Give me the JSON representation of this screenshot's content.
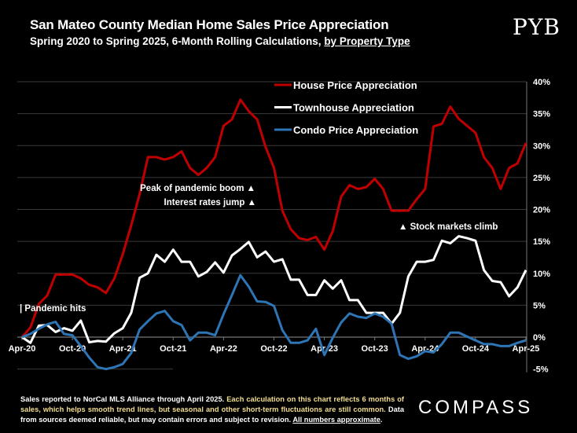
{
  "header": {
    "title": "San Mateo County Median Home Sales Price Appreciation",
    "subtitle_main": "Spring 2020 to Spring 2025, 6-Month Rolling Calculations, ",
    "subtitle_link": "by Property Type",
    "logo": "PYB"
  },
  "footer": {
    "part1": "Sales reported to NorCal MLS Alliance through April 2025. ",
    "part2": "Each calculation on this chart reflects 6 months of sales, which helps smooth trend lines, but seasonal and other short-term fluctuations are still common.",
    "part3": " Data from sources deemed reliable, but may contain errors and subject to revision. ",
    "part4": "All numbers approximate",
    "part5": ".",
    "logo": "COMPASS",
    "highlight_color": "#f3dd8e"
  },
  "chart_data": {
    "type": "line",
    "title": "San Mateo County Median Home Sales Price Appreciation",
    "xlabel": "",
    "ylabel": "",
    "x_start": "Apr-20",
    "x_end": "Apr-25",
    "x_interval": "monthly",
    "x_tick_labels": [
      "Apr-20",
      "Oct-20",
      "Apr-21",
      "Oct-21",
      "Apr-22",
      "Oct-22",
      "Apr-23",
      "Oct-23",
      "Apr-24",
      "Oct-24",
      "Apr-25"
    ],
    "y_tick_labels": [
      "40%",
      "35%",
      "30%",
      "25%",
      "20%",
      "15%",
      "10%",
      "5%",
      "0%",
      "-5%"
    ],
    "ylim": [
      -5,
      40
    ],
    "y_axis_side": "right",
    "grid": true,
    "legend_placement": "top-center",
    "series": [
      {
        "name": "House Price Appreciation",
        "color": "#c00000",
        "values": [
          0,
          1.5,
          5.2,
          6.5,
          9.8,
          9.8,
          9.8,
          9.2,
          8.2,
          7.8,
          6.9,
          9.2,
          13,
          17.5,
          22.4,
          28.2,
          28.2,
          27.8,
          28.2,
          29.1,
          26.5,
          25.4,
          26.5,
          28.2,
          33.1,
          34.1,
          37.2,
          35.4,
          34.1,
          29.8,
          26.5,
          19.8,
          16.9,
          15.5,
          15.2,
          15.7,
          13.7,
          16.6,
          22,
          23.8,
          23.2,
          23.5,
          24.8,
          23.2,
          19.8,
          19.8,
          19.8,
          21.6,
          23.2,
          33,
          33.4,
          36.1,
          34.2,
          33.1,
          32,
          28.2,
          26.5,
          23.2,
          26.5,
          27.2,
          30.4
        ]
      },
      {
        "name": "Townhouse  Appreciation",
        "color": "#ffffff",
        "values": [
          0,
          -0.9,
          1.8,
          1.9,
          0.8,
          1.4,
          1.0,
          2.6,
          -0.8,
          -0.6,
          -0.7,
          0.6,
          1.4,
          3.8,
          9.3,
          10,
          12.9,
          11.8,
          13.7,
          11.8,
          11.8,
          9.5,
          10.2,
          11.7,
          10.1,
          12.8,
          13.8,
          14.9,
          12.5,
          13.4,
          11.8,
          12.2,
          9.0,
          9.0,
          6.6,
          6.6,
          8.9,
          7.6,
          8.9,
          5.8,
          5.8,
          3.8,
          3.8,
          3.8,
          2.1,
          3.8,
          9.5,
          11.8,
          11.8,
          12.1,
          15.1,
          14.7,
          15.8,
          15.5,
          15.1,
          10.5,
          8.8,
          8.6,
          6.4,
          7.8,
          10.5
        ]
      },
      {
        "name": "Condo Price Appreciation",
        "color": "#2e75b6",
        "values": [
          0,
          0.5,
          1.3,
          2.0,
          2.4,
          0.5,
          0.3,
          -1.4,
          -3.2,
          -4.7,
          -5.0,
          -4.7,
          -4.2,
          -2.5,
          1.2,
          2.5,
          3.7,
          4.1,
          2.5,
          1.9,
          -0.5,
          0.7,
          0.7,
          0.3,
          3.6,
          6.6,
          9.7,
          7.9,
          5.6,
          5.5,
          4.9,
          1.1,
          -0.9,
          -0.9,
          -0.5,
          1.3,
          -2.8,
          -0.1,
          2.3,
          3.7,
          3.2,
          3.0,
          3.7,
          3.2,
          2.1,
          -2.8,
          -3.4,
          -3.0,
          -2.2,
          -2.4,
          -1.1,
          0.7,
          0.7,
          0.1,
          -0.5,
          -1.1,
          -1.1,
          -1.4,
          -1.4,
          -0.9,
          -0.5
        ]
      }
    ],
    "annotations": [
      {
        "text": "| Pandemic hits",
        "month_index": 0
      },
      {
        "text": "Peak of pandemic boom  ▲",
        "month_index": 26
      },
      {
        "text": "Interest rates jump  ▲",
        "month_index": 27
      },
      {
        "text": "▲  Stock markets climb",
        "month_index": 44
      }
    ]
  }
}
